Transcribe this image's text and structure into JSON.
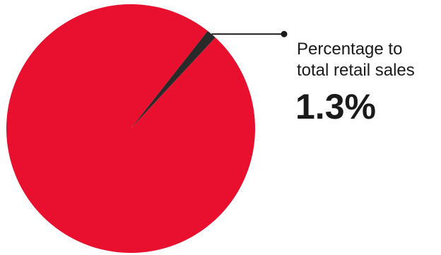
{
  "chart_data": {
    "type": "pie",
    "slices": [
      {
        "label": "Percentage to total retail sales",
        "value": 1.3,
        "color": "#2a2a2a"
      },
      {
        "label": "",
        "value": 98.7,
        "color": "#e8102e"
      }
    ],
    "annotation": {
      "line1": "Percentage to",
      "line2": "total retail sales",
      "value_text": "1.3%"
    }
  }
}
